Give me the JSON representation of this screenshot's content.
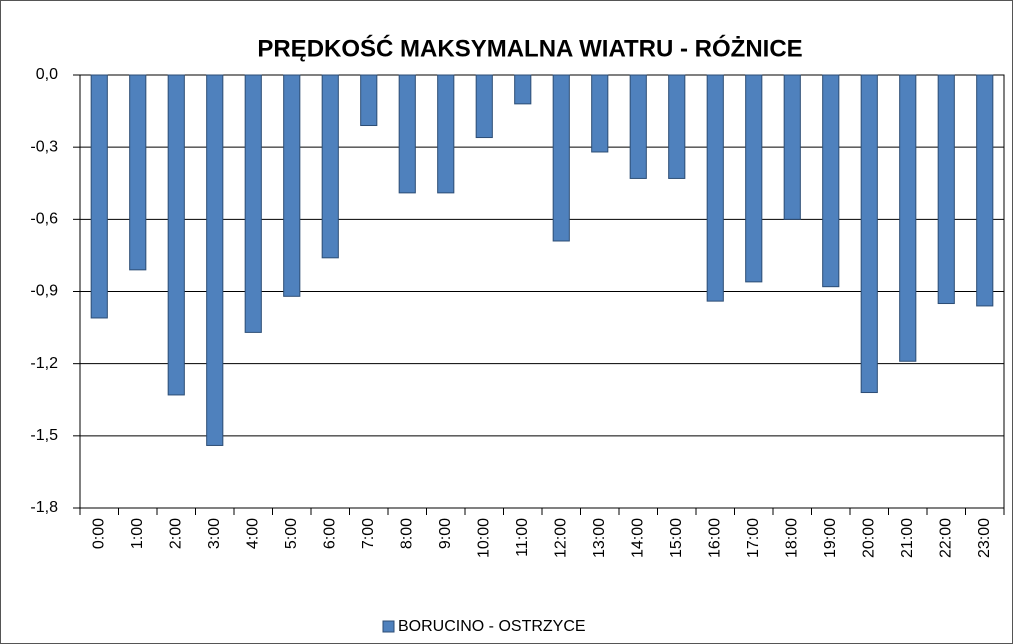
{
  "chart_data": {
    "type": "bar",
    "title": "PRĘDKOŚĆ MAKSYMALNA WIATRU -   RÓŻNICE",
    "categories": [
      "0:00",
      "1:00",
      "2:00",
      "3:00",
      "4:00",
      "5:00",
      "6:00",
      "7:00",
      "8:00",
      "9:00",
      "10:00",
      "11:00",
      "12:00",
      "13:00",
      "14:00",
      "15:00",
      "16:00",
      "17:00",
      "18:00",
      "19:00",
      "20:00",
      "21:00",
      "22:00",
      "23:00"
    ],
    "series": [
      {
        "name": "BORUCINO - OSTRZYCE",
        "color": "#4f81bd",
        "values": [
          -1.01,
          -0.81,
          -1.33,
          -1.54,
          -1.07,
          -0.92,
          -0.76,
          -0.21,
          -0.49,
          -0.49,
          -0.26,
          -0.12,
          -0.69,
          -0.32,
          -0.43,
          -0.43,
          -0.94,
          -0.86,
          -0.6,
          -0.88,
          -1.32,
          -1.19,
          -0.95,
          -0.96
        ]
      }
    ],
    "ylim": [
      -1.8,
      0
    ],
    "yticks": [
      {
        "value": 0,
        "label": "0,0"
      },
      {
        "value": -0.3,
        "label": "-0,3"
      },
      {
        "value": -0.6,
        "label": "-0,6"
      },
      {
        "value": -0.9,
        "label": "-0,9"
      },
      {
        "value": -1.2,
        "label": "-1,2"
      },
      {
        "value": -1.5,
        "label": "-1,5"
      },
      {
        "value": -1.8,
        "label": "-1,8"
      }
    ],
    "grid": true
  }
}
